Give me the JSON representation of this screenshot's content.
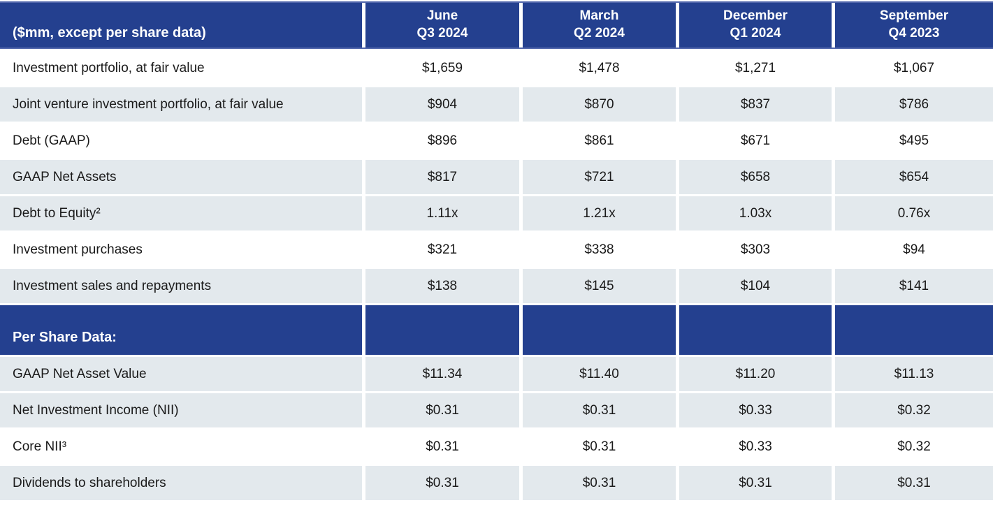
{
  "colors": {
    "header_blue": "#24408F",
    "header_border": "#5166AB",
    "row_shade": "#E3E9ED",
    "text_dark": "#1A1A1A",
    "text_light": "#FFFFFF"
  },
  "table": {
    "corner_label": "($mm, except per share data)",
    "columns": [
      {
        "month": "June",
        "quarter": "Q3 2024"
      },
      {
        "month": "March",
        "quarter": "Q2 2024"
      },
      {
        "month": "December",
        "quarter": "Q1 2024"
      },
      {
        "month": "September",
        "quarter": "Q4 2023"
      }
    ],
    "rows": [
      {
        "label": "Investment portfolio, at fair value",
        "shade": "white",
        "values": [
          "$1,659",
          "$1,478",
          "$1,271",
          "$1,067"
        ]
      },
      {
        "label": "Joint venture investment portfolio, at fair value",
        "shade": "shaded",
        "values": [
          "$904",
          "$870",
          "$837",
          "$786"
        ]
      },
      {
        "label": "Debt (GAAP)",
        "shade": "white",
        "values": [
          "$896",
          "$861",
          "$671",
          "$495"
        ]
      },
      {
        "label": "GAAP Net Assets",
        "shade": "shaded",
        "values": [
          "$817",
          "$721",
          "$658",
          "$654"
        ]
      },
      {
        "label": "Debt to Equity²",
        "shade": "shaded",
        "values": [
          "1.11x",
          "1.21x",
          "1.03x",
          "0.76x"
        ]
      },
      {
        "label": "Investment purchases",
        "shade": "white",
        "values": [
          "$321",
          "$338",
          "$303",
          "$94"
        ]
      },
      {
        "label": "Investment sales and repayments",
        "shade": "shaded",
        "values": [
          "$138",
          "$145",
          "$104",
          "$141"
        ]
      }
    ],
    "section_header": "Per Share Data:",
    "per_share_rows": [
      {
        "label": "GAAP Net Asset Value",
        "shade": "shaded",
        "values": [
          "$11.34",
          "$11.40",
          "$11.20",
          "$11.13"
        ]
      },
      {
        "label": "Net Investment Income (NII)",
        "shade": "shaded",
        "values": [
          "$0.31",
          "$0.31",
          "$0.33",
          "$0.32"
        ]
      },
      {
        "label": "Core NII³",
        "shade": "white",
        "values": [
          "$0.31",
          "$0.31",
          "$0.33",
          "$0.32"
        ]
      },
      {
        "label": "Dividends to shareholders",
        "shade": "shaded",
        "values": [
          "$0.31",
          "$0.31",
          "$0.31",
          "$0.31"
        ]
      }
    ]
  },
  "chart_data": {
    "type": "table",
    "title": "Quarterly financial summary ($mm, except per share data)",
    "columns": [
      "June Q3 2024",
      "March Q2 2024",
      "December Q1 2024",
      "September Q4 2023"
    ],
    "rows": [
      {
        "metric": "Investment portfolio, at fair value",
        "values": [
          1659,
          1478,
          1271,
          1067
        ]
      },
      {
        "metric": "Joint venture investment portfolio, at fair value",
        "values": [
          904,
          870,
          837,
          786
        ]
      },
      {
        "metric": "Debt (GAAP)",
        "values": [
          896,
          861,
          671,
          495
        ]
      },
      {
        "metric": "GAAP Net Assets",
        "values": [
          817,
          721,
          658,
          654
        ]
      },
      {
        "metric": "Debt to Equity",
        "values": [
          "1.11x",
          "1.21x",
          "1.03x",
          "0.76x"
        ]
      },
      {
        "metric": "Investment purchases",
        "values": [
          321,
          338,
          303,
          94
        ]
      },
      {
        "metric": "Investment sales and repayments",
        "values": [
          138,
          145,
          104,
          141
        ]
      },
      {
        "metric": "GAAP Net Asset Value per share",
        "values": [
          11.34,
          11.4,
          11.2,
          11.13
        ]
      },
      {
        "metric": "Net Investment Income (NII) per share",
        "values": [
          0.31,
          0.31,
          0.33,
          0.32
        ]
      },
      {
        "metric": "Core NII per share",
        "values": [
          0.31,
          0.31,
          0.33,
          0.32
        ]
      },
      {
        "metric": "Dividends to shareholders per share",
        "values": [
          0.31,
          0.31,
          0.31,
          0.31
        ]
      }
    ]
  }
}
